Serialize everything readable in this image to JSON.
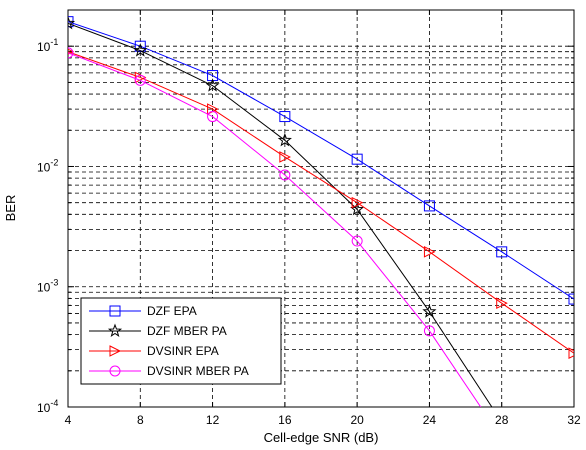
{
  "chart_data": {
    "type": "line",
    "title": "",
    "xlabel": "Cell-edge SNR (dB)",
    "ylabel": "BER",
    "xlim": [
      4,
      32
    ],
    "ylim": [
      0.0001,
      0.2
    ],
    "y_scale": "log",
    "grid": "on (dashed, major and minor)",
    "legend_position": "bottom-left",
    "x_ticks": [
      "4",
      "8",
      "12",
      "16",
      "20",
      "24",
      "28",
      "32"
    ],
    "y_ticks": [
      {
        "value": 0.0001,
        "base": "10",
        "exp": "-4"
      },
      {
        "value": 0.001,
        "base": "10",
        "exp": "-3"
      },
      {
        "value": 0.01,
        "base": "10",
        "exp": "-2"
      },
      {
        "value": 0.1,
        "base": "10",
        "exp": "-1"
      }
    ],
    "series": [
      {
        "name": "DZF EPA",
        "color": "#0000ff",
        "marker": "square",
        "x": [
          4,
          8,
          12,
          16,
          20,
          24,
          28,
          32
        ],
        "y": [
          0.16,
          0.1,
          0.057,
          0.026,
          0.0115,
          0.0047,
          0.00195,
          0.00079
        ]
      },
      {
        "name": "DZF MBER PA",
        "color": "#000000",
        "marker": "star",
        "x": [
          4,
          8,
          12,
          16,
          20,
          24,
          28
        ],
        "y": [
          0.155,
          0.092,
          0.047,
          0.0165,
          0.0044,
          0.00062,
          7.5e-05
        ]
      },
      {
        "name": "DVSINR EPA",
        "color": "#ff0000",
        "marker": "triangle-right",
        "x": [
          4,
          8,
          12,
          16,
          20,
          24,
          28,
          32
        ],
        "y": [
          0.09,
          0.055,
          0.03,
          0.012,
          0.005,
          0.00195,
          0.00073,
          0.00028
        ]
      },
      {
        "name": "DVSINR MBER PA",
        "color": "#ff00ff",
        "marker": "circle",
        "x": [
          4,
          8,
          12,
          16,
          20,
          24,
          28
        ],
        "y": [
          0.088,
          0.052,
          0.026,
          0.0085,
          0.0024,
          0.00043,
          5.5e-05
        ]
      }
    ]
  }
}
